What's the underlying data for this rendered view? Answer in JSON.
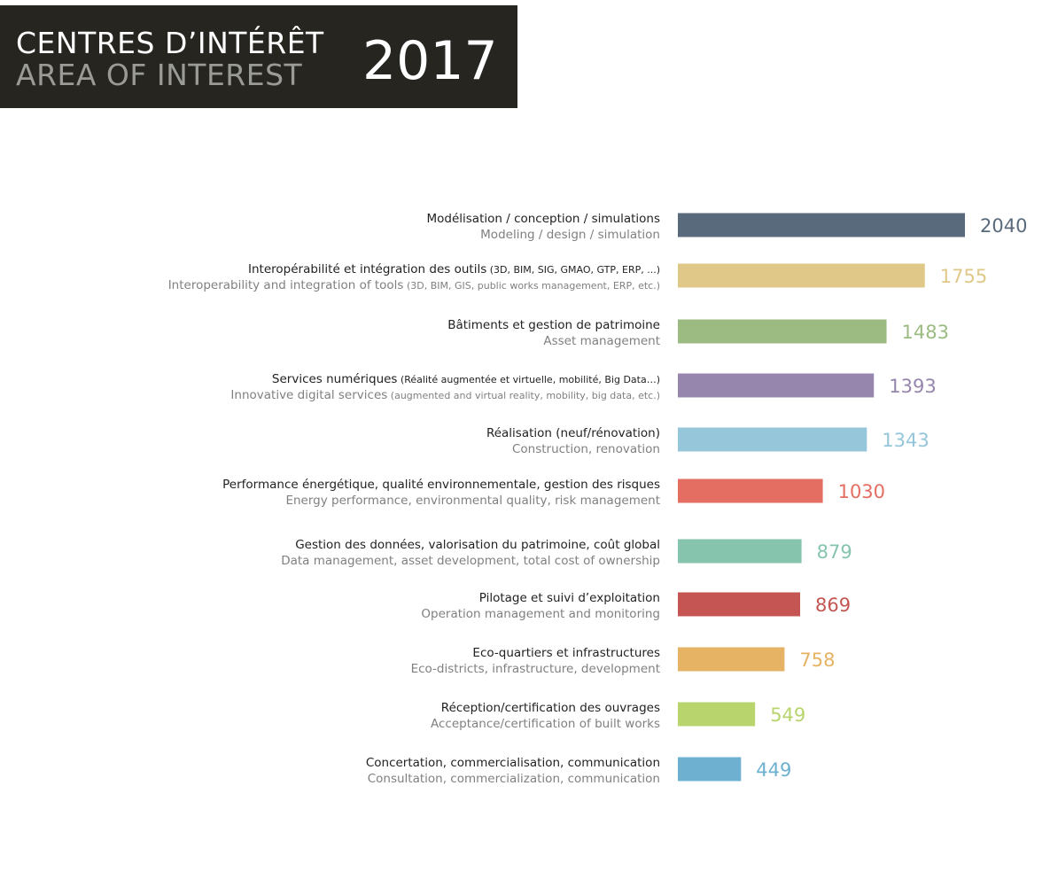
{
  "header": {
    "title_fr": "CENTRES D’INTÉRÊT",
    "title_en": "AREA OF INTEREST",
    "year": "2017"
  },
  "chart_data": {
    "type": "bar",
    "orientation": "horizontal",
    "grid": false,
    "legend": "none",
    "xlim": [
      0,
      2040
    ],
    "categories": [
      {
        "fr": "Modélisation / conception / simulations",
        "fr_detail": "",
        "en": "Modeling / design / simulation",
        "en_detail": ""
      },
      {
        "fr": "Interopérabilité et intégration des outils",
        "fr_detail": " (3D, BIM, SIG, GMAO, GTP, ERP, ...)",
        "en": "Interoperability and integration of tools",
        "en_detail": " (3D, BIM, GIS, public works management, ERP, etc.)"
      },
      {
        "fr": "Bâtiments et gestion de patrimoine",
        "fr_detail": "",
        "en": "Asset management",
        "en_detail": ""
      },
      {
        "fr": "Services numériques",
        "fr_detail": " (Réalité augmentée et virtuelle, mobilité, Big Data…)",
        "en": "Innovative digital services",
        "en_detail": " (augmented and virtual reality, mobility, big data, etc.)"
      },
      {
        "fr": "Réalisation (neuf/rénovation)",
        "fr_detail": "",
        "en": "Construction, renovation",
        "en_detail": ""
      },
      {
        "fr": "Performance énergétique, qualité environnementale, gestion des risques",
        "fr_detail": "",
        "en": "Energy performance, environmental quality, risk management",
        "en_detail": ""
      },
      {
        "fr": "Gestion des données, valorisation du patrimoine, coût global",
        "fr_detail": "",
        "en": "Data management, asset development, total cost of ownership",
        "en_detail": ""
      },
      {
        "fr": "Pilotage et suivi d’exploitation",
        "fr_detail": "",
        "en": "Operation management and monitoring",
        "en_detail": ""
      },
      {
        "fr": "Eco-quartiers et infrastructures",
        "fr_detail": "",
        "en": "Eco-districts, infrastructure, development",
        "en_detail": ""
      },
      {
        "fr": "Réception/certification des ouvrages",
        "fr_detail": "",
        "en": "Acceptance/certification of built works",
        "en_detail": ""
      },
      {
        "fr": "Concertation, commercialisation, communication",
        "fr_detail": "",
        "en": "Consultation, commercialization, communication",
        "en_detail": ""
      }
    ],
    "values": [
      2040,
      1755,
      1483,
      1393,
      1343,
      1030,
      879,
      869,
      758,
      549,
      449
    ],
    "colors": [
      "#5a6a7d",
      "#dfc888",
      "#9bbb82",
      "#9686ad",
      "#95c6da",
      "#e36e61",
      "#86c4ae",
      "#c45553",
      "#e6b263",
      "#b8d56d",
      "#6db0cf"
    ]
  }
}
